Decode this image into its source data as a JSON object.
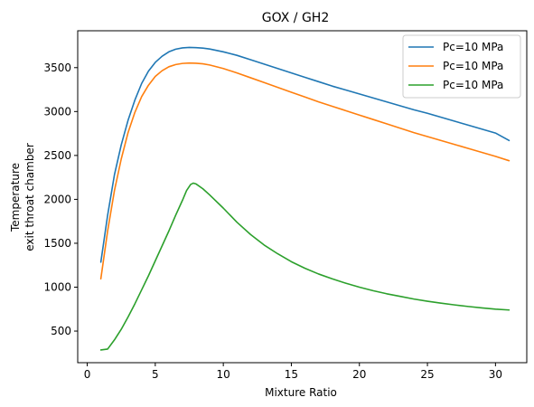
{
  "chart_data": {
    "type": "line",
    "title": "GOX / GH2",
    "xlabel": "Mixture Ratio",
    "ylabel_lines": [
      "Temperature",
      "exit   throat   chamber"
    ],
    "xlim": [
      -0.7,
      32.3
    ],
    "ylim": [
      140,
      3920
    ],
    "xticks": [
      0,
      5,
      10,
      15,
      20,
      25,
      30
    ],
    "yticks": [
      500,
      1000,
      1500,
      2000,
      2500,
      3000,
      3500
    ],
    "grid": false,
    "legend_position": "top-right",
    "series": [
      {
        "name": "Pc=10 MPa",
        "color": "#1f77b4",
        "x": [
          1.0,
          1.5,
          2,
          2.5,
          3,
          3.5,
          4,
          4.5,
          5,
          5.5,
          6,
          6.5,
          7,
          7.5,
          8,
          8.5,
          9,
          10,
          11,
          12,
          13,
          14,
          15,
          16,
          17,
          18,
          19,
          20,
          21,
          22,
          23,
          24,
          25,
          26,
          27,
          28,
          29,
          30,
          31
        ],
        "y": [
          1285,
          1820,
          2280,
          2620,
          2900,
          3130,
          3320,
          3460,
          3560,
          3630,
          3680,
          3710,
          3725,
          3730,
          3728,
          3722,
          3712,
          3680,
          3640,
          3590,
          3540,
          3490,
          3440,
          3390,
          3340,
          3290,
          3245,
          3200,
          3155,
          3110,
          3065,
          3020,
          2980,
          2935,
          2890,
          2845,
          2800,
          2755,
          2670
        ]
      },
      {
        "name": "Pc=10 MPa",
        "color": "#ff7f0e",
        "x": [
          1.0,
          1.5,
          2,
          2.5,
          3,
          3.5,
          4,
          4.5,
          5,
          5.5,
          6,
          6.5,
          7,
          7.5,
          8,
          8.5,
          9,
          10,
          11,
          12,
          13,
          14,
          15,
          16,
          17,
          18,
          19,
          20,
          21,
          22,
          23,
          24,
          25,
          26,
          27,
          28,
          29,
          30,
          31
        ],
        "y": [
          1095,
          1640,
          2100,
          2460,
          2760,
          2990,
          3170,
          3300,
          3400,
          3465,
          3510,
          3535,
          3548,
          3552,
          3550,
          3543,
          3530,
          3490,
          3440,
          3385,
          3330,
          3275,
          3220,
          3165,
          3110,
          3060,
          3010,
          2960,
          2910,
          2860,
          2810,
          2760,
          2715,
          2670,
          2625,
          2580,
          2535,
          2490,
          2440
        ]
      },
      {
        "name": "Pc=10 MPa",
        "color": "#2ca02c",
        "x": [
          1.0,
          1.5,
          2,
          2.5,
          3,
          3.5,
          4,
          4.5,
          5,
          5.5,
          6,
          6.5,
          7,
          7.3,
          7.6,
          7.8,
          8.0,
          8.5,
          9,
          10,
          11,
          12,
          13,
          14,
          15,
          16,
          17,
          18,
          19,
          20,
          21,
          22,
          23,
          24,
          25,
          26,
          27,
          28,
          29,
          30,
          31
        ],
        "y": [
          285,
          295,
          400,
          520,
          660,
          810,
          970,
          1130,
          1300,
          1470,
          1640,
          1820,
          1990,
          2100,
          2170,
          2185,
          2175,
          2120,
          2050,
          1900,
          1740,
          1600,
          1480,
          1380,
          1290,
          1215,
          1150,
          1095,
          1045,
          1000,
          960,
          925,
          895,
          865,
          840,
          818,
          798,
          780,
          764,
          750,
          740
        ]
      }
    ]
  }
}
